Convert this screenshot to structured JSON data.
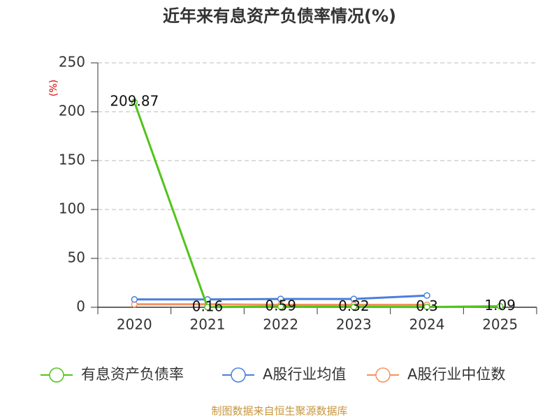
{
  "chart_data": {
    "type": "line",
    "title": "近年来有息资产负债率情况(%)",
    "y_label": "(%)",
    "source": "制图数据来自恒生聚源数据库",
    "categories": [
      "2020",
      "2021",
      "2022",
      "2023",
      "2024",
      "2025"
    ],
    "series": [
      {
        "name": "有息资产负债率",
        "color": "#52c41a",
        "values": [
          209.87,
          0.16,
          0.59,
          0.32,
          0.3,
          1.09
        ],
        "data_labels": true
      },
      {
        "name": "A股行业均值",
        "color": "#4a7fdc",
        "values": [
          8,
          8,
          8.5,
          8.5,
          12,
          null
        ]
      },
      {
        "name": "A股行业中位数",
        "color": "#f4925e",
        "values": [
          3,
          3,
          2.5,
          2.5,
          2.5,
          null
        ]
      }
    ],
    "ylim": [
      0,
      250
    ],
    "yticks": [
      0,
      50,
      100,
      150,
      200,
      250
    ],
    "grid": true
  }
}
